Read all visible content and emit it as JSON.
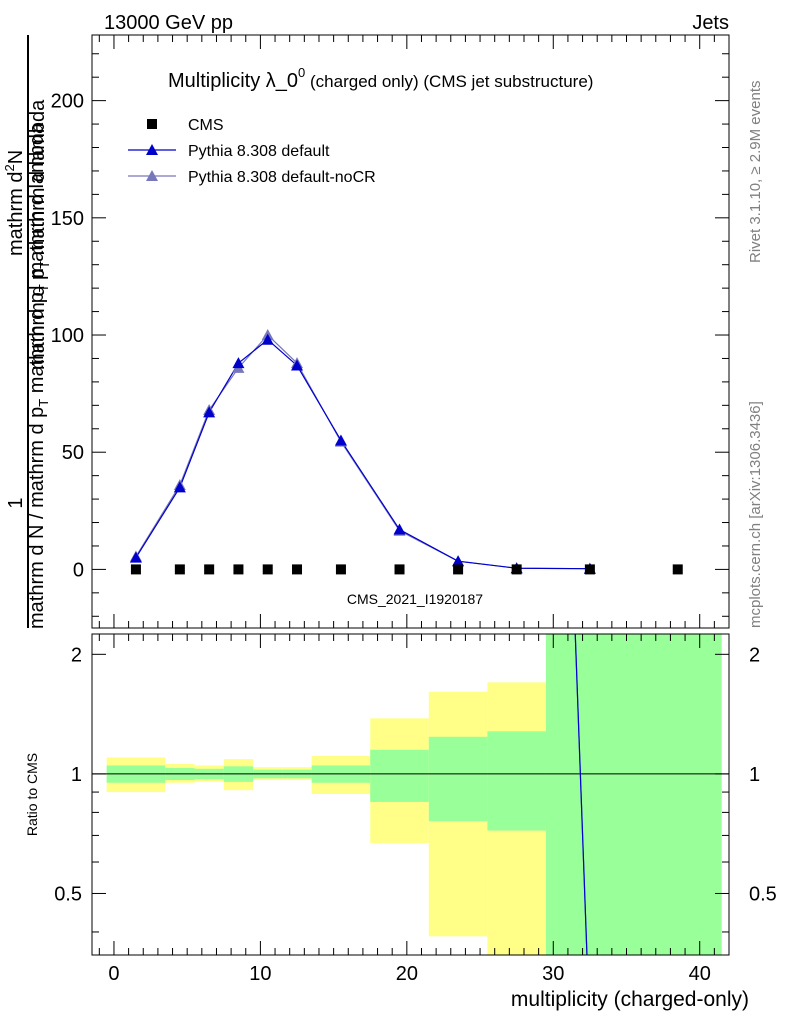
{
  "header": {
    "left": "13000 GeV pp",
    "right": "Jets"
  },
  "side_text": {
    "rivet": "Rivet 3.1.10, ≥ 2.9M events",
    "mcplots": "mcplots.cern.ch [arXiv:1306.3436]"
  },
  "colors": {
    "cms": "#000000",
    "pythia_default": "#0000cc",
    "pythia_nocr": "#7777bb",
    "band_inner": "#99ff99",
    "band_outer": "#ffff88"
  },
  "chart_data": [
    {
      "type": "scatter",
      "title_main": "Multiplicity λ_0",
      "title_sup": "0",
      "title_tail": " (charged only) (CMS jet substructure)",
      "ylabel_top": "1",
      "ylabel_bottom": "mathrm d N / mathrm d p",
      "ylabel_bottom_sub": "T",
      "ylabel_bottom_rest": " mathrm d p",
      "ylabel_bottom_sub2": "T",
      "ylabel_bottom_tail": " mathrm d lambda",
      "ylabel_upper": "mathrm d",
      "ylabel_upper_sup": "2",
      "ylabel_upper_tail": "N",
      "ylabel_upper2": "mathrm d p",
      "ylabel_upper2_sub": "T",
      "ylabel_upper2_tail": " mathrm d lambda",
      "watermark": "CMS_2021_I1920187",
      "xlim": [
        -1.5,
        42
      ],
      "ylim": [
        -25,
        228
      ],
      "yticks": [
        0,
        50,
        100,
        150,
        200
      ],
      "grid": false,
      "legend_position": "top-left",
      "series": [
        {
          "name": "CMS",
          "marker": "square",
          "x": [
            1.5,
            4.5,
            6.5,
            8.5,
            10.5,
            12.5,
            15.5,
            19.5,
            23.5,
            27.5,
            32.5,
            38.5
          ],
          "y": [
            0,
            0,
            0,
            0,
            0,
            0,
            0,
            0,
            0,
            0,
            0,
            0
          ]
        },
        {
          "name": "Pythia 8.308 default",
          "marker": "triangle",
          "x": [
            1.5,
            4.5,
            6.5,
            8.5,
            10.5,
            12.5,
            15.5,
            19.5,
            23.5,
            27.5,
            32.5
          ],
          "y": [
            5,
            35,
            67,
            88,
            98,
            87,
            55,
            17,
            3.5,
            0.5,
            0.3
          ]
        },
        {
          "name": "Pythia 8.308 default-noCR",
          "marker": "triangle",
          "x": [
            1.5,
            4.5,
            6.5,
            8.5,
            10.5,
            12.5,
            15.5,
            19.5,
            23.5,
            27.5,
            32.5
          ],
          "y": [
            5.5,
            36,
            68,
            86,
            100,
            88,
            54.5,
            16.5,
            3.5,
            0.5,
            0.3
          ]
        }
      ]
    },
    {
      "type": "line",
      "ylabel": "Ratio to CMS",
      "xlabel": "multiplicity (charged-only)",
      "xlim": [
        -1.5,
        42
      ],
      "ylim": [
        0.35,
        2.25
      ],
      "xticks": [
        0,
        10,
        20,
        30,
        40
      ],
      "yticks": [
        0.5,
        1,
        2
      ],
      "ytick_labels": [
        "0.5",
        "1",
        "2"
      ],
      "reference_line": 1,
      "bands": [
        {
          "x0": -0.5,
          "x1": 3.5,
          "inner": [
            0.95,
            1.05
          ],
          "outer": [
            0.9,
            1.1
          ]
        },
        {
          "x0": 3.5,
          "x1": 5.5,
          "inner": [
            0.965,
            1.035
          ],
          "outer": [
            0.95,
            1.06
          ]
        },
        {
          "x0": 5.5,
          "x1": 7.5,
          "inner": [
            0.97,
            1.03
          ],
          "outer": [
            0.955,
            1.05
          ]
        },
        {
          "x0": 7.5,
          "x1": 9.5,
          "inner": [
            0.955,
            1.045
          ],
          "outer": [
            0.91,
            1.09
          ]
        },
        {
          "x0": 9.5,
          "x1": 11.5,
          "inner": [
            0.975,
            1.025
          ],
          "outer": [
            0.965,
            1.04
          ]
        },
        {
          "x0": 11.5,
          "x1": 13.5,
          "inner": [
            0.975,
            1.025
          ],
          "outer": [
            0.965,
            1.04
          ]
        },
        {
          "x0": 13.5,
          "x1": 17.5,
          "inner": [
            0.95,
            1.05
          ],
          "outer": [
            0.89,
            1.11
          ]
        },
        {
          "x0": 17.5,
          "x1": 21.5,
          "inner": [
            0.85,
            1.15
          ],
          "outer": [
            0.67,
            1.38
          ]
        },
        {
          "x0": 21.5,
          "x1": 25.5,
          "inner": [
            0.76,
            1.24
          ],
          "outer": [
            0.39,
            1.61
          ]
        },
        {
          "x0": 25.5,
          "x1": 29.5,
          "inner": [
            0.72,
            1.28
          ],
          "outer": [
            0.3,
            1.7
          ]
        },
        {
          "x0": 29.5,
          "x1": 41.5,
          "inner": [
            0.3,
            2.3
          ],
          "outer": [
            0.3,
            2.3
          ]
        }
      ],
      "series": [
        {
          "name": "Pythia 8.308 default",
          "x": [
            31.5,
            32.3
          ],
          "y": [
            2.3,
            0.33
          ]
        },
        {
          "name": "Pythia 8.308 default-noCR",
          "x": [
            31.5,
            32.3
          ],
          "y": [
            2.3,
            0.33
          ]
        }
      ]
    }
  ]
}
